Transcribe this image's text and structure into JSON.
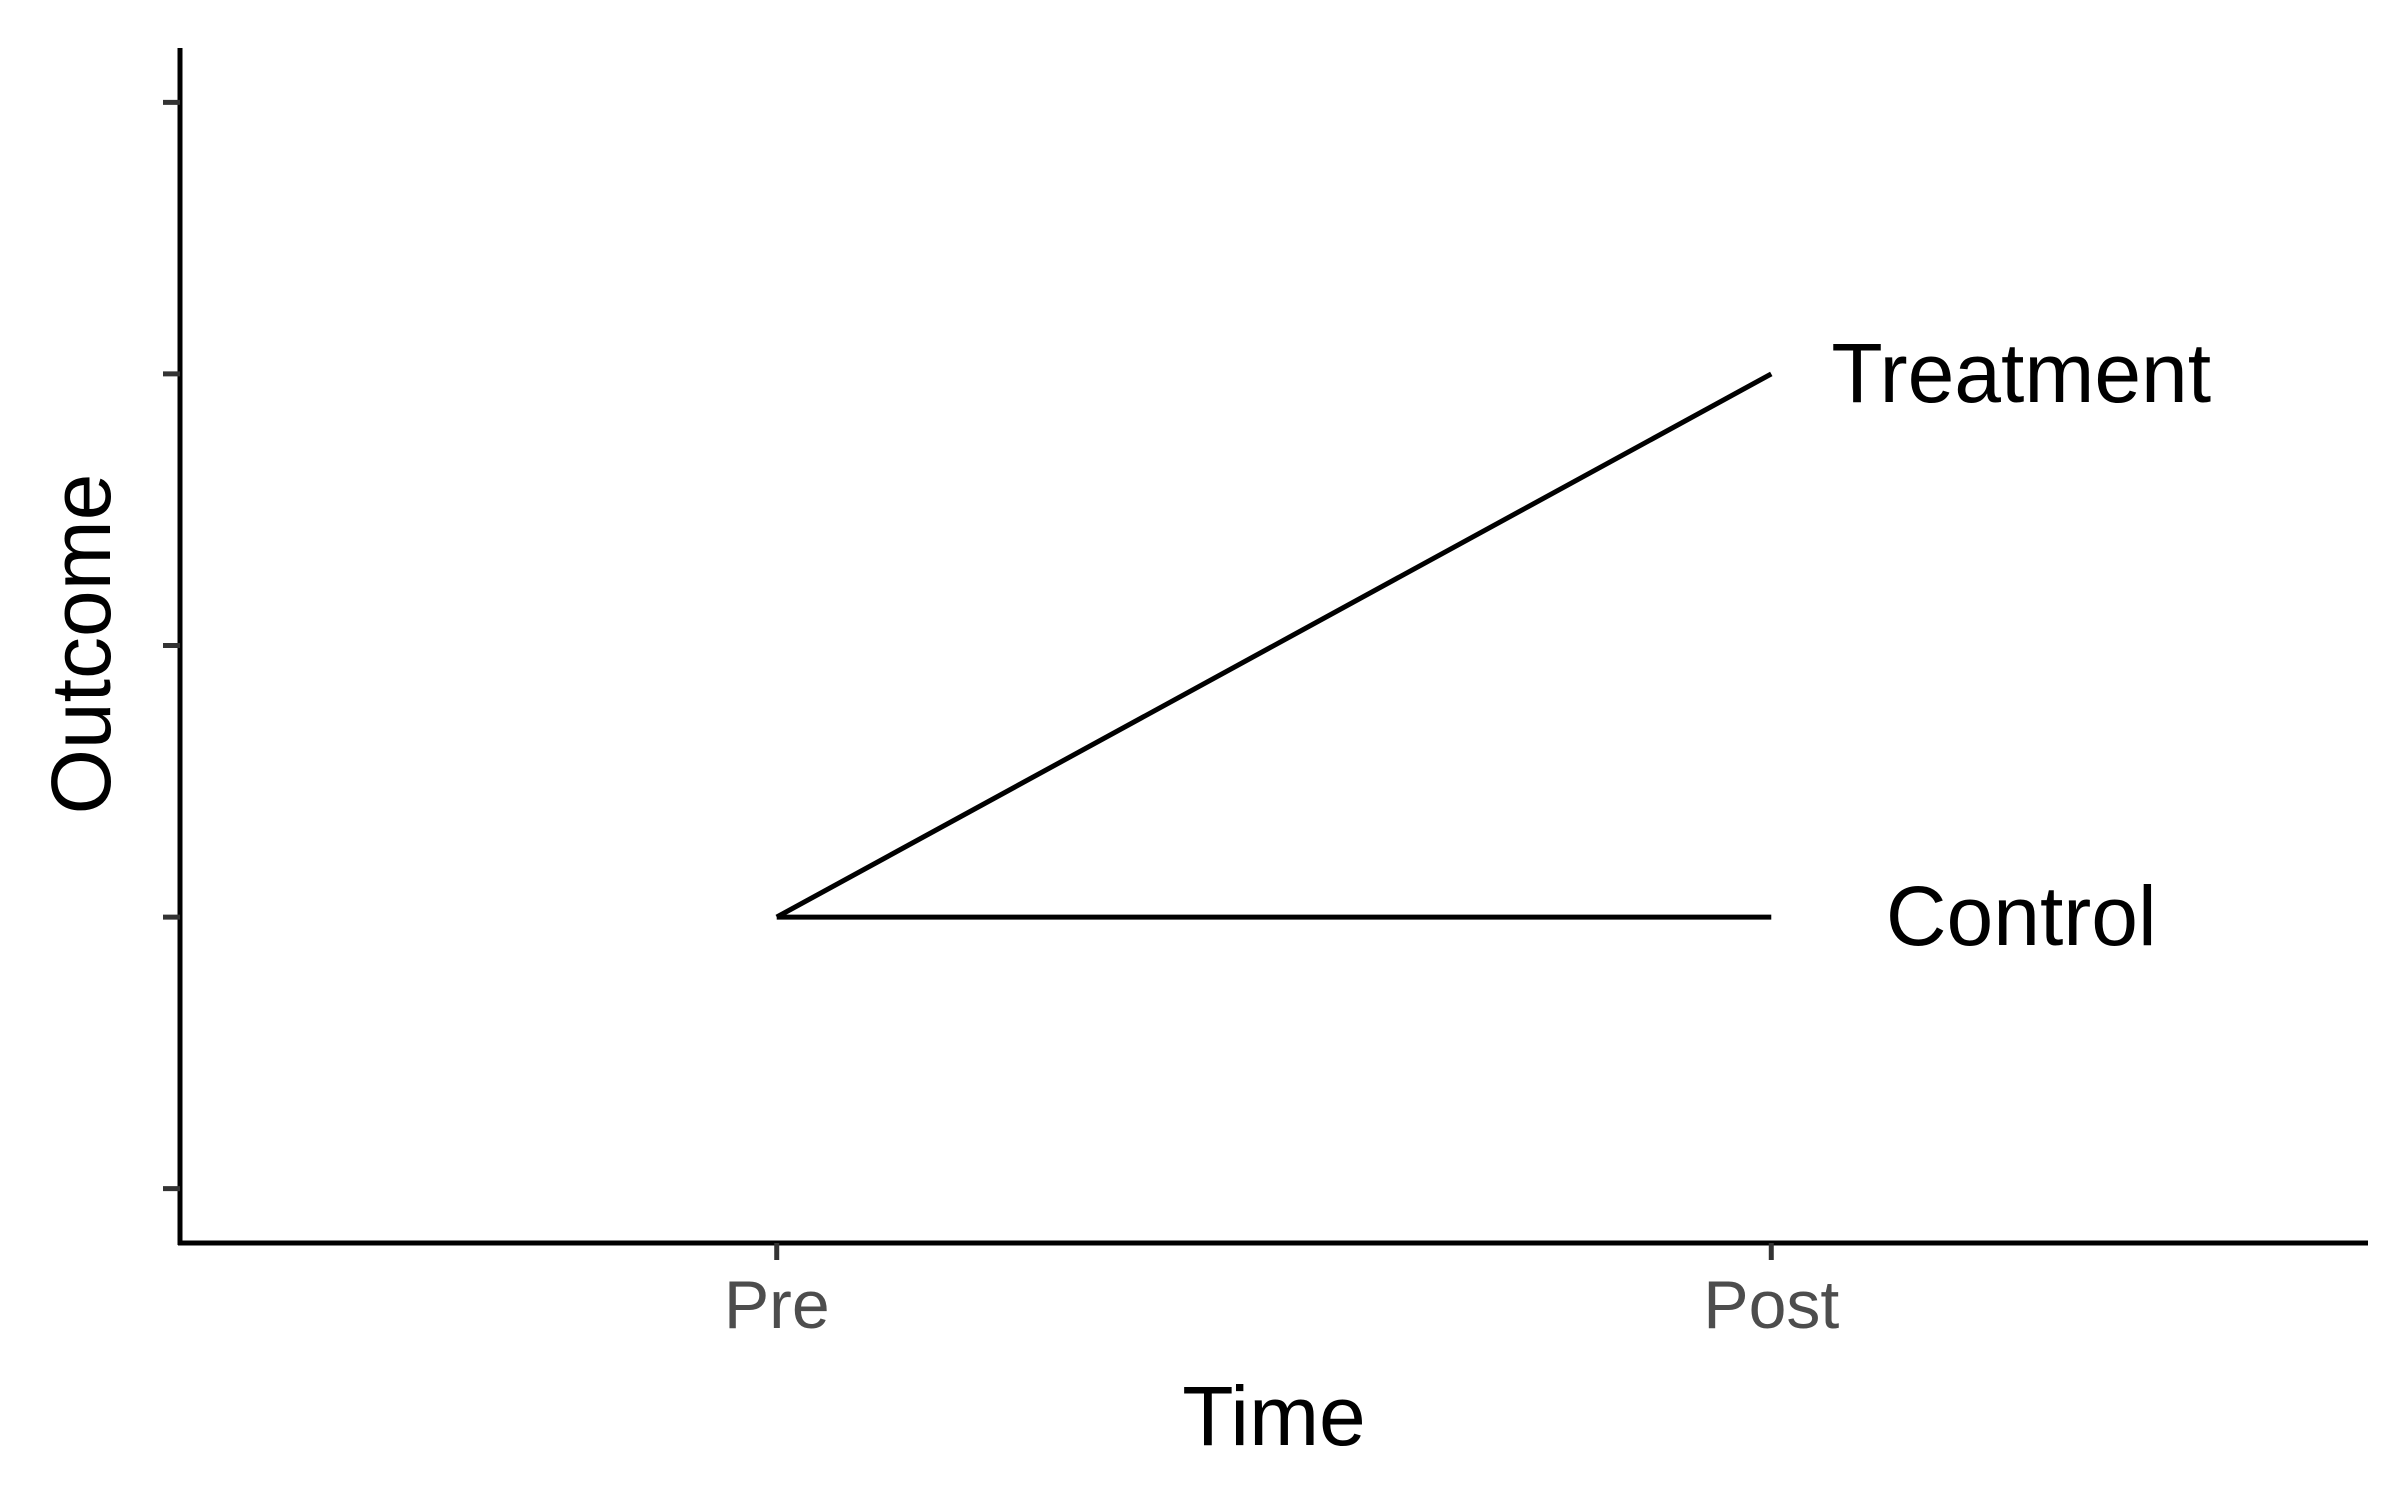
{
  "chart_data": {
    "type": "line",
    "title": "",
    "xlabel": "Time",
    "ylabel": "Outcome",
    "categories": [
      "Pre",
      "Post"
    ],
    "x_range": [
      0.4,
      2.6
    ],
    "ylim": [
      0.8,
      5.2
    ],
    "y_ticks": [
      1,
      2,
      3,
      4,
      5
    ],
    "y_tick_labels_shown": false,
    "grid": false,
    "legend": "direct labels at line ends",
    "series": [
      {
        "name": "Treatment",
        "values": [
          2,
          4
        ]
      },
      {
        "name": "Control",
        "values": [
          2,
          2
        ]
      }
    ],
    "colors": {
      "line": "#000000",
      "axis": "#000000",
      "tick_label": "#4d4d4d"
    }
  }
}
